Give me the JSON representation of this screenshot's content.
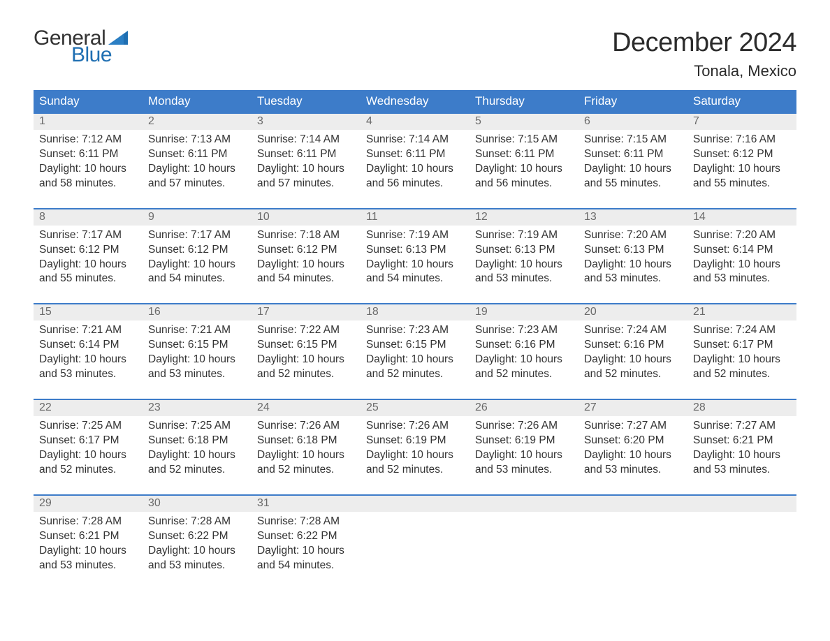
{
  "logo": {
    "word1": "General",
    "word2": "Blue",
    "word1_color": "#333333",
    "word2_color": "#1f6fb2",
    "flag_color": "#1f6fb2"
  },
  "title": "December 2024",
  "subtitle": "Tonala, Mexico",
  "colors": {
    "header_bg": "#3d7cc9",
    "header_text": "#ffffff",
    "week_border": "#3d7cc9",
    "daynum_bg": "#ededed",
    "daynum_text": "#6b6b6b",
    "body_text": "#333333",
    "page_bg": "#ffffff"
  },
  "typography": {
    "title_fontsize": 38,
    "subtitle_fontsize": 22,
    "dow_fontsize": 17,
    "daynum_fontsize": 16,
    "cell_fontsize": 15.5
  },
  "days_of_week": [
    "Sunday",
    "Monday",
    "Tuesday",
    "Wednesday",
    "Thursday",
    "Friday",
    "Saturday"
  ],
  "weeks": [
    [
      {
        "num": "1",
        "sunrise": "Sunrise: 7:12 AM",
        "sunset": "Sunset: 6:11 PM",
        "day1": "Daylight: 10 hours",
        "day2": "and 58 minutes."
      },
      {
        "num": "2",
        "sunrise": "Sunrise: 7:13 AM",
        "sunset": "Sunset: 6:11 PM",
        "day1": "Daylight: 10 hours",
        "day2": "and 57 minutes."
      },
      {
        "num": "3",
        "sunrise": "Sunrise: 7:14 AM",
        "sunset": "Sunset: 6:11 PM",
        "day1": "Daylight: 10 hours",
        "day2": "and 57 minutes."
      },
      {
        "num": "4",
        "sunrise": "Sunrise: 7:14 AM",
        "sunset": "Sunset: 6:11 PM",
        "day1": "Daylight: 10 hours",
        "day2": "and 56 minutes."
      },
      {
        "num": "5",
        "sunrise": "Sunrise: 7:15 AM",
        "sunset": "Sunset: 6:11 PM",
        "day1": "Daylight: 10 hours",
        "day2": "and 56 minutes."
      },
      {
        "num": "6",
        "sunrise": "Sunrise: 7:15 AM",
        "sunset": "Sunset: 6:11 PM",
        "day1": "Daylight: 10 hours",
        "day2": "and 55 minutes."
      },
      {
        "num": "7",
        "sunrise": "Sunrise: 7:16 AM",
        "sunset": "Sunset: 6:12 PM",
        "day1": "Daylight: 10 hours",
        "day2": "and 55 minutes."
      }
    ],
    [
      {
        "num": "8",
        "sunrise": "Sunrise: 7:17 AM",
        "sunset": "Sunset: 6:12 PM",
        "day1": "Daylight: 10 hours",
        "day2": "and 55 minutes."
      },
      {
        "num": "9",
        "sunrise": "Sunrise: 7:17 AM",
        "sunset": "Sunset: 6:12 PM",
        "day1": "Daylight: 10 hours",
        "day2": "and 54 minutes."
      },
      {
        "num": "10",
        "sunrise": "Sunrise: 7:18 AM",
        "sunset": "Sunset: 6:12 PM",
        "day1": "Daylight: 10 hours",
        "day2": "and 54 minutes."
      },
      {
        "num": "11",
        "sunrise": "Sunrise: 7:19 AM",
        "sunset": "Sunset: 6:13 PM",
        "day1": "Daylight: 10 hours",
        "day2": "and 54 minutes."
      },
      {
        "num": "12",
        "sunrise": "Sunrise: 7:19 AM",
        "sunset": "Sunset: 6:13 PM",
        "day1": "Daylight: 10 hours",
        "day2": "and 53 minutes."
      },
      {
        "num": "13",
        "sunrise": "Sunrise: 7:20 AM",
        "sunset": "Sunset: 6:13 PM",
        "day1": "Daylight: 10 hours",
        "day2": "and 53 minutes."
      },
      {
        "num": "14",
        "sunrise": "Sunrise: 7:20 AM",
        "sunset": "Sunset: 6:14 PM",
        "day1": "Daylight: 10 hours",
        "day2": "and 53 minutes."
      }
    ],
    [
      {
        "num": "15",
        "sunrise": "Sunrise: 7:21 AM",
        "sunset": "Sunset: 6:14 PM",
        "day1": "Daylight: 10 hours",
        "day2": "and 53 minutes."
      },
      {
        "num": "16",
        "sunrise": "Sunrise: 7:21 AM",
        "sunset": "Sunset: 6:15 PM",
        "day1": "Daylight: 10 hours",
        "day2": "and 53 minutes."
      },
      {
        "num": "17",
        "sunrise": "Sunrise: 7:22 AM",
        "sunset": "Sunset: 6:15 PM",
        "day1": "Daylight: 10 hours",
        "day2": "and 52 minutes."
      },
      {
        "num": "18",
        "sunrise": "Sunrise: 7:23 AM",
        "sunset": "Sunset: 6:15 PM",
        "day1": "Daylight: 10 hours",
        "day2": "and 52 minutes."
      },
      {
        "num": "19",
        "sunrise": "Sunrise: 7:23 AM",
        "sunset": "Sunset: 6:16 PM",
        "day1": "Daylight: 10 hours",
        "day2": "and 52 minutes."
      },
      {
        "num": "20",
        "sunrise": "Sunrise: 7:24 AM",
        "sunset": "Sunset: 6:16 PM",
        "day1": "Daylight: 10 hours",
        "day2": "and 52 minutes."
      },
      {
        "num": "21",
        "sunrise": "Sunrise: 7:24 AM",
        "sunset": "Sunset: 6:17 PM",
        "day1": "Daylight: 10 hours",
        "day2": "and 52 minutes."
      }
    ],
    [
      {
        "num": "22",
        "sunrise": "Sunrise: 7:25 AM",
        "sunset": "Sunset: 6:17 PM",
        "day1": "Daylight: 10 hours",
        "day2": "and 52 minutes."
      },
      {
        "num": "23",
        "sunrise": "Sunrise: 7:25 AM",
        "sunset": "Sunset: 6:18 PM",
        "day1": "Daylight: 10 hours",
        "day2": "and 52 minutes."
      },
      {
        "num": "24",
        "sunrise": "Sunrise: 7:26 AM",
        "sunset": "Sunset: 6:18 PM",
        "day1": "Daylight: 10 hours",
        "day2": "and 52 minutes."
      },
      {
        "num": "25",
        "sunrise": "Sunrise: 7:26 AM",
        "sunset": "Sunset: 6:19 PM",
        "day1": "Daylight: 10 hours",
        "day2": "and 52 minutes."
      },
      {
        "num": "26",
        "sunrise": "Sunrise: 7:26 AM",
        "sunset": "Sunset: 6:19 PM",
        "day1": "Daylight: 10 hours",
        "day2": "and 53 minutes."
      },
      {
        "num": "27",
        "sunrise": "Sunrise: 7:27 AM",
        "sunset": "Sunset: 6:20 PM",
        "day1": "Daylight: 10 hours",
        "day2": "and 53 minutes."
      },
      {
        "num": "28",
        "sunrise": "Sunrise: 7:27 AM",
        "sunset": "Sunset: 6:21 PM",
        "day1": "Daylight: 10 hours",
        "day2": "and 53 minutes."
      }
    ],
    [
      {
        "num": "29",
        "sunrise": "Sunrise: 7:28 AM",
        "sunset": "Sunset: 6:21 PM",
        "day1": "Daylight: 10 hours",
        "day2": "and 53 minutes."
      },
      {
        "num": "30",
        "sunrise": "Sunrise: 7:28 AM",
        "sunset": "Sunset: 6:22 PM",
        "day1": "Daylight: 10 hours",
        "day2": "and 53 minutes."
      },
      {
        "num": "31",
        "sunrise": "Sunrise: 7:28 AM",
        "sunset": "Sunset: 6:22 PM",
        "day1": "Daylight: 10 hours",
        "day2": "and 54 minutes."
      },
      null,
      null,
      null,
      null
    ]
  ]
}
